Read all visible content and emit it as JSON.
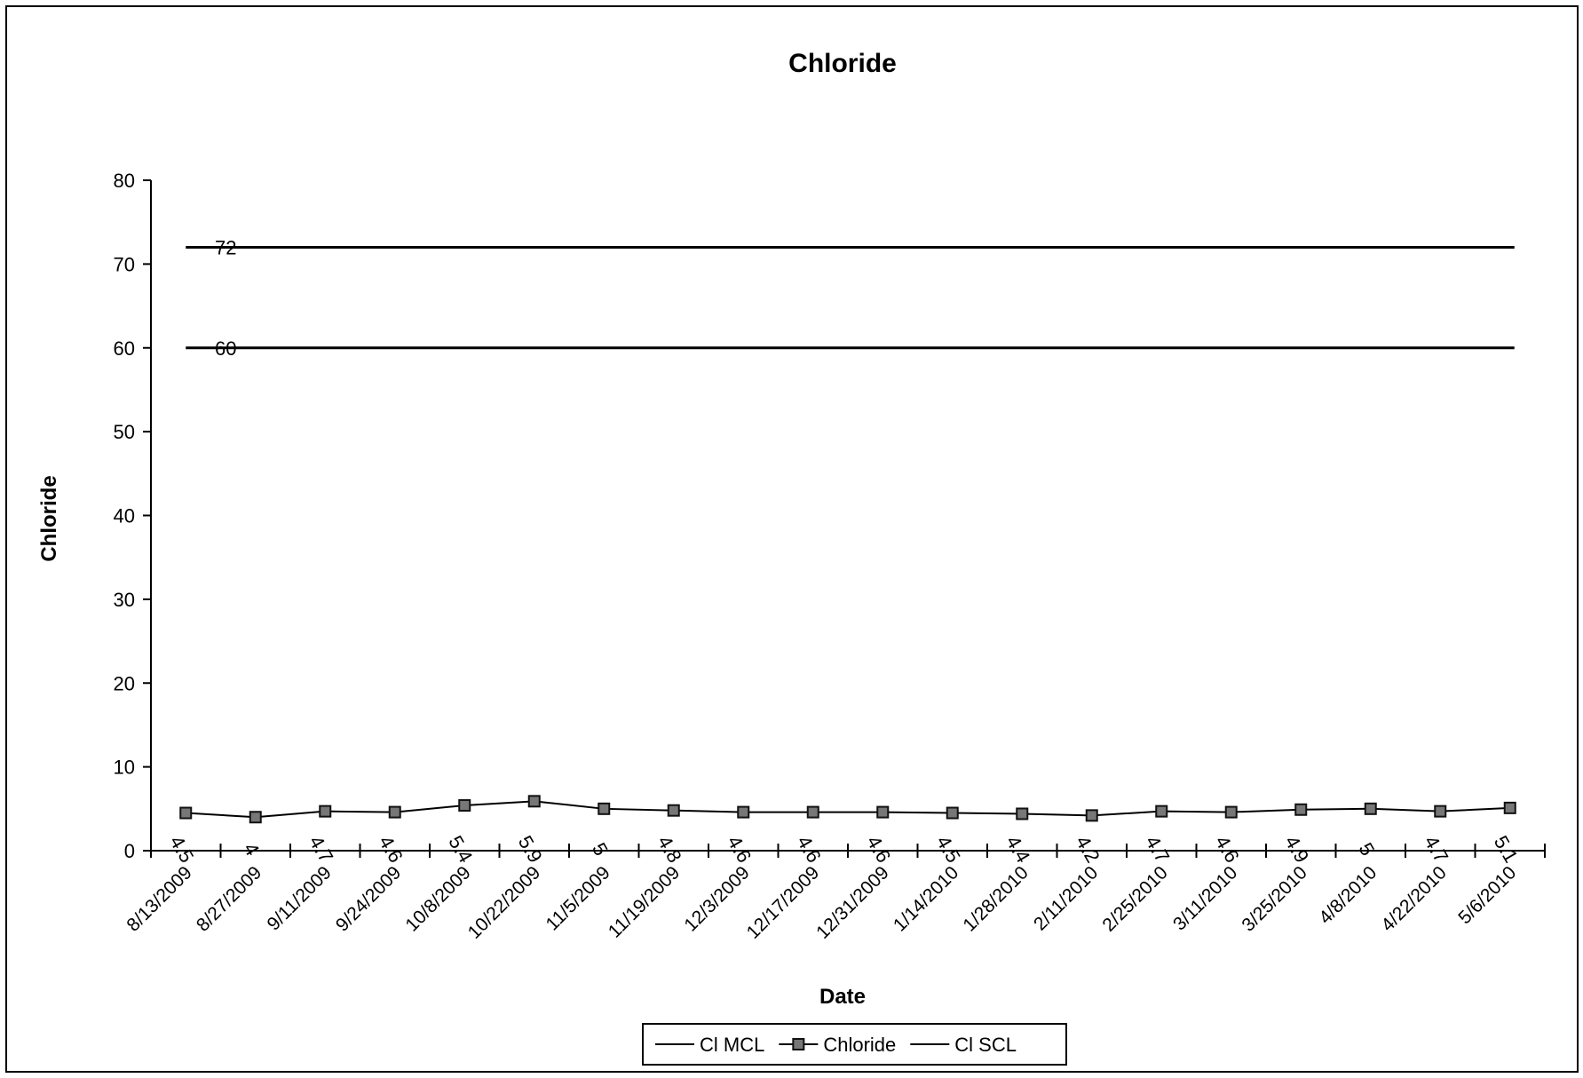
{
  "chart_data": {
    "type": "line",
    "title": "Chloride",
    "xlabel": "Date",
    "ylabel": "Chloride",
    "ylim": [
      0,
      80
    ],
    "yticks": [
      0,
      10,
      20,
      30,
      40,
      50,
      60,
      70,
      80
    ],
    "grid": false,
    "legend_position": "bottom",
    "categories": [
      "8/13/2009",
      "8/27/2009",
      "9/11/2009",
      "9/24/2009",
      "10/8/2009",
      "10/22/2009",
      "11/5/2009",
      "11/19/2009",
      "12/3/2009",
      "12/17/2009",
      "12/31/2009",
      "1/14/2010",
      "1/28/2010",
      "2/11/2010",
      "2/25/2010",
      "3/11/2010",
      "3/25/2010",
      "4/8/2010",
      "4/22/2010",
      "5/6/2010"
    ],
    "series": [
      {
        "name": "Cl MCL",
        "values": [
          72,
          72,
          72,
          72,
          72,
          72,
          72,
          72,
          72,
          72,
          72,
          72,
          72,
          72,
          72,
          72,
          72,
          72,
          72,
          72
        ],
        "first_label": "72",
        "color": "#000000"
      },
      {
        "name": "Chloride",
        "values": [
          4.5,
          4,
          4.7,
          4.6,
          5.4,
          5.9,
          5,
          4.8,
          4.6,
          4.6,
          4.6,
          4.5,
          4.4,
          4.2,
          4.7,
          4.6,
          4.9,
          5,
          4.7,
          5.1
        ],
        "labels": [
          "4.5",
          "4",
          "4.7",
          "4.6",
          "5.4",
          "5.9",
          "5",
          "4.8",
          "4.6",
          "4.6",
          "4.6",
          "4.5",
          "4.4",
          "4.2",
          "4.7",
          "4.6",
          "4.9",
          "5",
          "4.7",
          "5.1"
        ],
        "color": "#000000",
        "marker": "square"
      },
      {
        "name": "Cl SCL",
        "values": [
          60,
          60,
          60,
          60,
          60,
          60,
          60,
          60,
          60,
          60,
          60,
          60,
          60,
          60,
          60,
          60,
          60,
          60,
          60,
          60
        ],
        "first_label": "60",
        "color": "#000000"
      }
    ]
  }
}
